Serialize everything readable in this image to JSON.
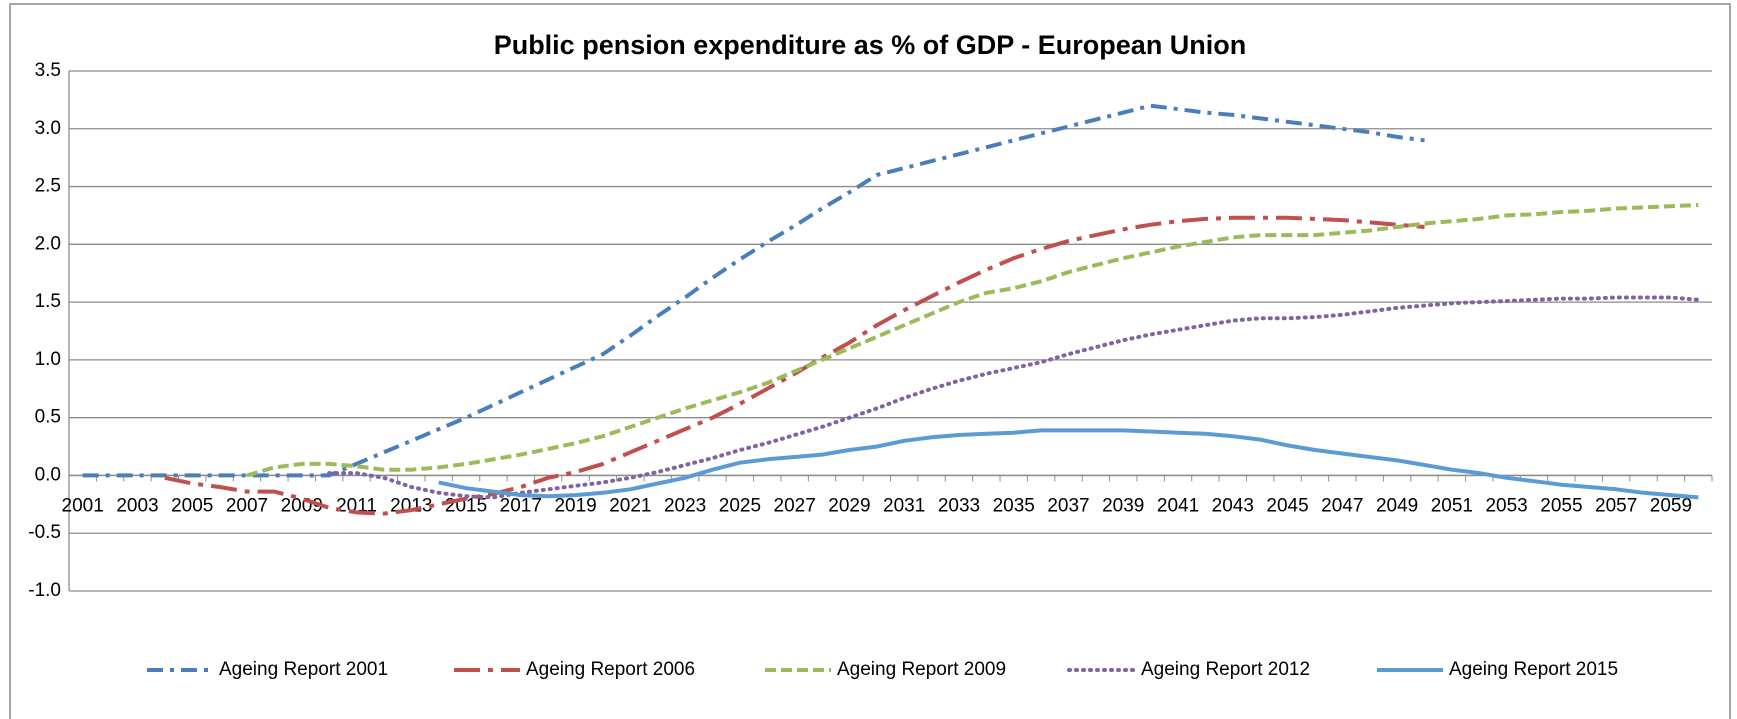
{
  "chart_data": {
    "type": "line",
    "title": "Public pension expenditure as % of GDP - European Union",
    "categories": [
      "2001",
      null,
      "2003",
      null,
      "2005",
      null,
      "2007",
      null,
      "2009",
      null,
      "2011",
      null,
      "2013",
      null,
      "2015",
      null,
      "2017",
      null,
      "2019",
      null,
      "2021",
      null,
      "2023",
      null,
      "2025",
      null,
      "2027",
      null,
      "2029",
      null,
      "2031",
      null,
      "2033",
      null,
      "2035",
      null,
      "2037",
      null,
      "2039",
      null,
      "2041",
      null,
      "2043",
      null,
      "2045",
      null,
      "2047",
      null,
      "2049",
      null,
      "2051",
      null,
      "2053",
      null,
      "2055",
      null,
      "2057",
      null,
      "2059",
      null
    ],
    "ylim": [
      -1,
      3.5
    ],
    "yticks": [
      {
        "value": -1,
        "label": "-1.0"
      },
      -0.5,
      {
        "value": 0,
        "label": "0.0"
      },
      0.5,
      {
        "value": 1,
        "label": "1.0"
      },
      1.5,
      {
        "value": 2,
        "label": "2.0"
      },
      2.5,
      {
        "value": 3,
        "label": "3.0"
      },
      3.5
    ],
    "grid": true,
    "legend": "bottom",
    "series": [
      {
        "name": "Ageing Report 2001",
        "color": "#4a7ebb",
        "style": "dash-dot",
        "values": [
          0,
          0,
          0,
          0,
          0,
          0,
          0,
          0,
          0,
          0,
          0.1,
          0.2,
          0.3,
          0.4,
          0.5,
          0.61,
          0.72,
          0.83,
          0.94,
          1.05,
          1.21,
          1.38,
          1.54,
          1.71,
          1.87,
          2.02,
          2.16,
          2.31,
          2.45,
          2.6,
          2.66,
          2.72,
          2.78,
          2.84,
          2.9,
          2.96,
          3.02,
          3.08,
          3.14,
          3.2,
          3.17,
          3.14,
          3.12,
          3.09,
          3.06,
          3.03,
          3.0,
          2.97,
          2.93,
          2.9,
          null,
          null,
          null,
          null,
          null,
          null,
          null,
          null,
          null,
          null
        ]
      },
      {
        "name": "Ageing Report 2006",
        "color": "#c0504d",
        "style": "long-dash-dot",
        "values": [
          null,
          null,
          null,
          -0.02,
          -0.07,
          -0.1,
          -0.14,
          -0.14,
          -0.2,
          -0.28,
          -0.32,
          -0.33,
          -0.3,
          -0.25,
          -0.2,
          -0.16,
          -0.1,
          -0.02,
          0.03,
          0.1,
          0.2,
          0.3,
          0.4,
          0.5,
          0.62,
          0.75,
          0.88,
          1.02,
          1.15,
          1.3,
          1.43,
          1.55,
          1.67,
          1.78,
          1.88,
          1.96,
          2.03,
          2.08,
          2.13,
          2.17,
          2.2,
          2.22,
          2.23,
          2.23,
          2.23,
          2.22,
          2.21,
          2.19,
          2.17,
          2.15,
          null,
          null,
          null,
          null,
          null,
          null,
          null,
          null,
          null,
          null
        ]
      },
      {
        "name": "Ageing Report 2009",
        "color": "#9bbb59",
        "style": "dash",
        "values": [
          null,
          null,
          null,
          null,
          null,
          null,
          0,
          0.07,
          0.1,
          0.1,
          0.08,
          0.05,
          0.05,
          0.07,
          0.1,
          0.14,
          0.18,
          0.23,
          0.28,
          0.34,
          0.42,
          0.5,
          0.58,
          0.65,
          0.72,
          0.8,
          0.9,
          1.0,
          1.1,
          1.2,
          1.3,
          1.4,
          1.5,
          1.58,
          1.62,
          1.68,
          1.76,
          1.82,
          1.88,
          1.93,
          1.98,
          2.02,
          2.06,
          2.08,
          2.08,
          2.08,
          2.1,
          2.12,
          2.15,
          2.18,
          2.2,
          2.22,
          2.25,
          2.26,
          2.28,
          2.29,
          2.31,
          2.32,
          2.33,
          2.34
        ]
      },
      {
        "name": "Ageing Report 2012",
        "color": "#8064a2",
        "style": "dot",
        "values": [
          null,
          null,
          null,
          null,
          null,
          null,
          null,
          null,
          null,
          0.02,
          0.02,
          -0.02,
          -0.1,
          -0.15,
          -0.18,
          -0.19,
          -0.15,
          -0.12,
          -0.09,
          -0.06,
          -0.02,
          0.03,
          0.09,
          0.15,
          0.22,
          0.28,
          0.35,
          0.42,
          0.5,
          0.58,
          0.67,
          0.75,
          0.82,
          0.88,
          0.93,
          0.98,
          1.05,
          1.11,
          1.17,
          1.22,
          1.26,
          1.3,
          1.34,
          1.36,
          1.36,
          1.37,
          1.39,
          1.42,
          1.45,
          1.47,
          1.49,
          1.5,
          1.51,
          1.52,
          1.53,
          1.53,
          1.54,
          1.54,
          1.54,
          1.52
        ]
      },
      {
        "name": "Ageing Report 2015",
        "color": "#5b9bd5",
        "style": "solid",
        "values": [
          null,
          null,
          null,
          null,
          null,
          null,
          null,
          null,
          null,
          null,
          null,
          null,
          null,
          -0.06,
          -0.11,
          -0.14,
          -0.17,
          -0.18,
          -0.17,
          -0.15,
          -0.12,
          -0.07,
          -0.02,
          0.05,
          0.11,
          0.14,
          0.16,
          0.18,
          0.22,
          0.25,
          0.3,
          0.33,
          0.35,
          0.36,
          0.37,
          0.39,
          0.39,
          0.39,
          0.39,
          0.38,
          0.37,
          0.36,
          0.34,
          0.31,
          0.26,
          0.22,
          0.19,
          0.16,
          0.13,
          0.09,
          0.05,
          0.02,
          -0.02,
          -0.05,
          -0.08,
          -0.1,
          -0.12,
          -0.15,
          -0.17,
          -0.19
        ]
      }
    ]
  }
}
